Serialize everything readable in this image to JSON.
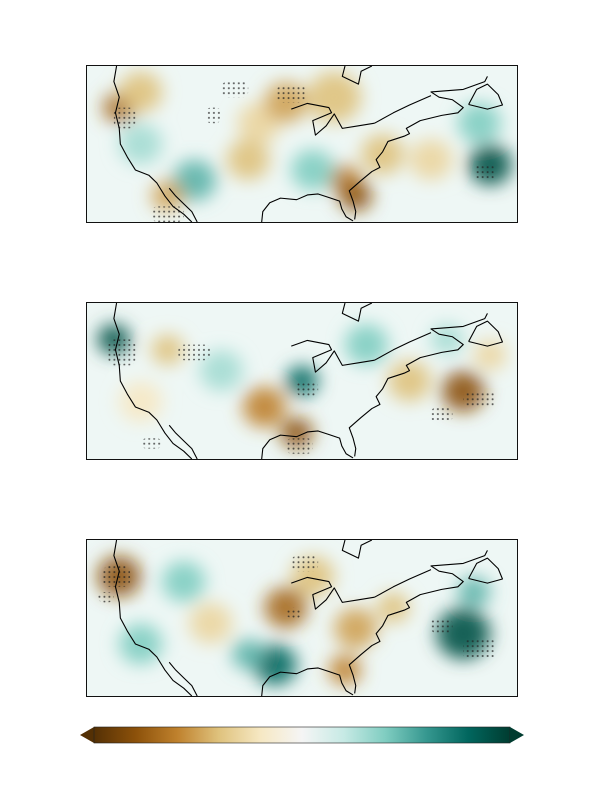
{
  "colormap": {
    "name": "BrBG",
    "stops": [
      "#543005",
      "#8c510a",
      "#bf812d",
      "#dfc27d",
      "#f6e8c3",
      "#f5f5f5",
      "#c7eae5",
      "#80cdc1",
      "#35978f",
      "#01665e",
      "#003c30"
    ]
  },
  "panels": [
    {
      "name": "panel-1",
      "blobs": [
        {
          "lon": -124,
          "lat": 47,
          "val": -0.7,
          "r": 3
        },
        {
          "lon": -120,
          "lat": 50,
          "val": -0.4,
          "r": 4
        },
        {
          "lon": -98,
          "lat": 44,
          "val": -0.3,
          "r": 4
        },
        {
          "lon": -93,
          "lat": 48,
          "val": -0.5,
          "r": 4
        },
        {
          "lon": -84,
          "lat": 49,
          "val": -0.4,
          "r": 5
        },
        {
          "lon": -100,
          "lat": 37,
          "val": -0.4,
          "r": 4
        },
        {
          "lon": -82,
          "lat": 33,
          "val": -0.6,
          "r": 3
        },
        {
          "lon": -80,
          "lat": 30,
          "val": -0.8,
          "r": 3
        },
        {
          "lon": -75,
          "lat": 38,
          "val": -0.4,
          "r": 4
        },
        {
          "lon": -66,
          "lat": 37,
          "val": -0.3,
          "r": 4
        },
        {
          "lon": -57,
          "lat": 44,
          "val": 0.4,
          "r": 4
        },
        {
          "lon": -55,
          "lat": 36,
          "val": 0.9,
          "r": 4
        },
        {
          "lon": -110,
          "lat": 33,
          "val": 0.5,
          "r": 4
        },
        {
          "lon": -88,
          "lat": 35,
          "val": 0.4,
          "r": 4
        },
        {
          "lon": -120,
          "lat": 40,
          "val": 0.3,
          "r": 4
        },
        {
          "lon": -115,
          "lat": 30,
          "val": -0.5,
          "r": 3
        }
      ]
    },
    {
      "name": "panel-2",
      "blobs": [
        {
          "lon": -125,
          "lat": 48,
          "val": 0.9,
          "r": 3
        },
        {
          "lon": -115,
          "lat": 46,
          "val": -0.4,
          "r": 3
        },
        {
          "lon": -90,
          "lat": 40,
          "val": 0.8,
          "r": 3
        },
        {
          "lon": -97,
          "lat": 35,
          "val": -0.6,
          "r": 4
        },
        {
          "lon": -91,
          "lat": 30,
          "val": -0.8,
          "r": 3
        },
        {
          "lon": -70,
          "lat": 40,
          "val": -0.4,
          "r": 4
        },
        {
          "lon": -60,
          "lat": 38,
          "val": -0.8,
          "r": 4
        },
        {
          "lon": -78,
          "lat": 47,
          "val": 0.4,
          "r": 4
        },
        {
          "lon": -63,
          "lat": 48,
          "val": 0.3,
          "r": 3
        },
        {
          "lon": -120,
          "lat": 36,
          "val": -0.2,
          "r": 4
        },
        {
          "lon": -105,
          "lat": 42,
          "val": 0.3,
          "r": 4
        },
        {
          "lon": -55,
          "lat": 45,
          "val": -0.3,
          "r": 3
        }
      ]
    },
    {
      "name": "panel-3",
      "blobs": [
        {
          "lon": -124,
          "lat": 48,
          "val": -0.8,
          "r": 4
        },
        {
          "lon": -112,
          "lat": 47,
          "val": 0.4,
          "r": 4
        },
        {
          "lon": -93,
          "lat": 42,
          "val": -0.7,
          "r": 4
        },
        {
          "lon": -88,
          "lat": 48,
          "val": -0.4,
          "r": 4
        },
        {
          "lon": -80,
          "lat": 38,
          "val": -0.5,
          "r": 4
        },
        {
          "lon": -95,
          "lat": 31,
          "val": 0.8,
          "r": 4
        },
        {
          "lon": -82,
          "lat": 30,
          "val": -0.6,
          "r": 3
        },
        {
          "lon": -60,
          "lat": 37,
          "val": 0.9,
          "r": 5
        },
        {
          "lon": -58,
          "lat": 45,
          "val": 0.5,
          "r": 3
        },
        {
          "lon": -120,
          "lat": 35,
          "val": 0.4,
          "r": 4
        },
        {
          "lon": -107,
          "lat": 39,
          "val": -0.3,
          "r": 4
        },
        {
          "lon": -100,
          "lat": 33,
          "val": 0.5,
          "r": 3
        },
        {
          "lon": -73,
          "lat": 42,
          "val": -0.4,
          "r": 3
        }
      ]
    }
  ]
}
